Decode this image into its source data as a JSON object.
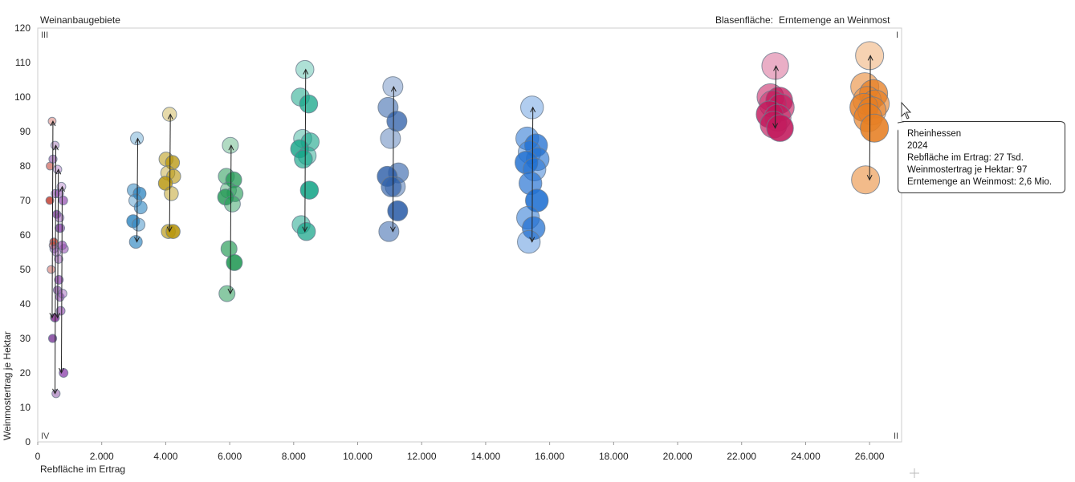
{
  "header": {
    "left_label": "Weinanbaugebiete",
    "bubble_size_label": "Blasenfläche:",
    "bubble_size_measure": "Erntemenge an Weinmost"
  },
  "chart_data": {
    "type": "scatter",
    "xlabel": "Rebfläche im Ertrag",
    "ylabel": "Weinmostertrag je Hektar",
    "xlim": [
      0,
      27000
    ],
    "ylim": [
      0,
      120
    ],
    "x_ticks": [
      "0",
      "2.000",
      "4.000",
      "6.000",
      "8.000",
      "10.000",
      "12.000",
      "14.000",
      "16.000",
      "18.000",
      "20.000",
      "22.000",
      "24.000",
      "26.000"
    ],
    "y_ticks": [
      "0",
      "10",
      "20",
      "30",
      "40",
      "50",
      "60",
      "70",
      "80",
      "90",
      "100",
      "110",
      "120"
    ],
    "quadrants": {
      "top_left": "III",
      "top_right": "I",
      "bottom_left": "IV",
      "bottom_right": "II"
    },
    "grid": false,
    "series": [
      {
        "color": "#c0392b",
        "x": 450,
        "y": [
          93,
          80,
          58,
          50,
          36,
          70,
          57
        ]
      },
      {
        "color": "#7d3c98",
        "x": 540,
        "y": [
          86,
          82,
          66,
          56,
          44,
          30,
          14
        ]
      },
      {
        "color": "#8e44ad",
        "x": 620,
        "y": [
          79,
          72,
          62,
          55,
          42,
          36,
          53
        ]
      },
      {
        "color": "#9b59b6",
        "x": 740,
        "y": [
          74,
          72,
          70,
          62,
          56,
          47,
          43,
          38,
          20,
          65,
          57
        ]
      },
      {
        "color": "#2e86c1",
        "x": 3100,
        "y": [
          88,
          73,
          72,
          70,
          68,
          64,
          63,
          58
        ]
      },
      {
        "color": "#b7950b",
        "x": 4120,
        "y": [
          95,
          82,
          81,
          78,
          77,
          75,
          72,
          61,
          61
        ]
      },
      {
        "color": "#229954",
        "x": 6020,
        "y": [
          86,
          77,
          76,
          73,
          72,
          71,
          69,
          56,
          52,
          43
        ]
      },
      {
        "color": "#17a589",
        "x": 8350,
        "y": [
          108,
          100,
          98,
          88,
          87,
          85,
          83,
          82,
          73,
          63,
          61
        ]
      },
      {
        "color": "#2e5fa8",
        "x": 11100,
        "y": [
          103,
          97,
          93,
          88,
          78,
          77,
          74,
          74,
          67,
          61
        ]
      },
      {
        "color": "#1f6fd1",
        "x": 15450,
        "y": [
          97,
          88,
          86,
          84,
          82,
          81,
          79,
          75,
          70,
          65,
          62,
          58
        ]
      },
      {
        "color": "#c2185b",
        "x": 23050,
        "y": [
          109,
          100,
          99,
          98,
          97,
          95,
          94,
          92,
          91
        ]
      },
      {
        "color": "#e67e22",
        "x": 26000,
        "y": [
          112,
          103,
          101,
          99,
          98,
          97,
          96,
          94,
          91,
          76
        ]
      }
    ],
    "tooltip": {
      "region": "Rheinhessen",
      "year": "2024",
      "line_area": "Rebfläche im Ertrag: 27 Tsd.",
      "line_yield": "Weinmostertrag je Hektar: 97",
      "line_total": "Erntemenge an Weinmost: 2,6 Mio."
    }
  }
}
